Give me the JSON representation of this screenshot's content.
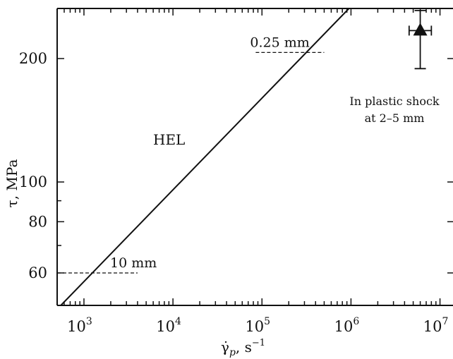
{
  "chart_data": {
    "type": "line",
    "x_scale": "log",
    "y_scale": "log",
    "xlim": [
      500,
      14000000
    ],
    "ylim": [
      50,
      265
    ],
    "xlabel": {
      "main": "γ̇",
      "sub": "p",
      "unit": ", s",
      "exp": "−1"
    },
    "ylabel": "τ, MPa",
    "x_ticks": [
      {
        "value": 1000,
        "base": "10",
        "exp": "3"
      },
      {
        "value": 10000,
        "base": "10",
        "exp": "4"
      },
      {
        "value": 100000,
        "base": "10",
        "exp": "5"
      },
      {
        "value": 1000000,
        "base": "10",
        "exp": "6"
      },
      {
        "value": 10000000,
        "base": "10",
        "exp": "7"
      }
    ],
    "y_ticks": [
      {
        "value": 60,
        "label": "60"
      },
      {
        "value": 80,
        "label": "80"
      },
      {
        "value": 100,
        "label": "100"
      },
      {
        "value": 200,
        "label": "200"
      }
    ],
    "y_minor_ticks": [
      70,
      90
    ],
    "series": [
      {
        "name": "HEL",
        "x": [
          550,
          950000
        ],
        "y": [
          50,
          265
        ]
      }
    ],
    "thickness_marks": [
      {
        "label": "10 mm",
        "y": 60,
        "x_start": 500,
        "x_end": 4000
      },
      {
        "label": "0.25 mm",
        "y": 207,
        "x_start": 85000,
        "x_end": 500000
      }
    ],
    "point": {
      "x": 6000000,
      "y": 234,
      "x_err": [
        4500000,
        8000000
      ],
      "y_err": [
        189,
        262
      ],
      "label_lines": [
        "In plastic shock",
        "at 2–5 mm"
      ]
    },
    "grid": false
  }
}
